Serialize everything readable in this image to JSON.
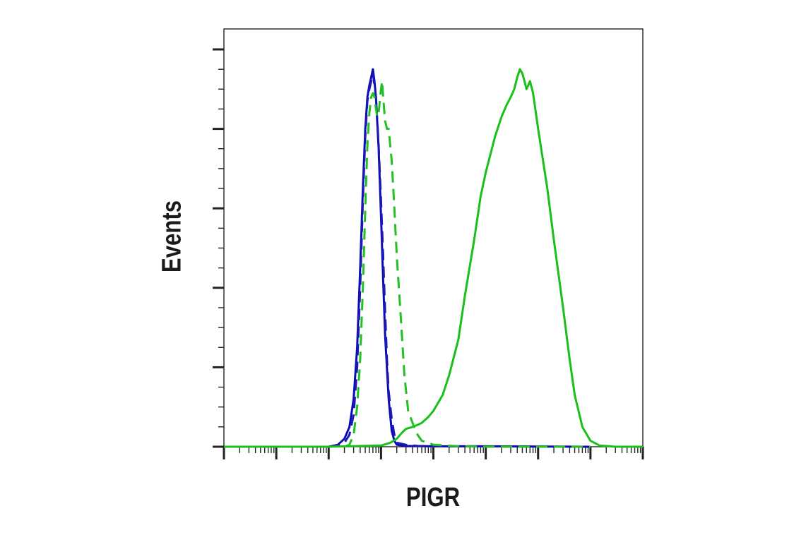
{
  "chart_data": {
    "type": "line",
    "title": "",
    "xlabel": "PIGR",
    "ylabel": "Events",
    "x_scale": "log",
    "xlim": [
      1,
      100000000
    ],
    "ylim": [
      0,
      100
    ],
    "grid": false,
    "legend": "none",
    "y_major_ticks": [
      0,
      20,
      40,
      60,
      80,
      100
    ],
    "series": [
      {
        "color": "#0a0ab8",
        "dash": "solid",
        "points": [
          [
            100,
            0
          ],
          [
            150,
            0.5
          ],
          [
            200,
            2
          ],
          [
            250,
            5
          ],
          [
            300,
            12
          ],
          [
            350,
            25
          ],
          [
            400,
            45
          ],
          [
            450,
            65
          ],
          [
            500,
            80
          ],
          [
            550,
            88
          ],
          [
            600,
            91
          ],
          [
            650,
            93
          ],
          [
            700,
            95
          ],
          [
            750,
            92
          ],
          [
            800,
            88
          ],
          [
            900,
            75
          ],
          [
            1000,
            58
          ],
          [
            1100,
            42
          ],
          [
            1200,
            28
          ],
          [
            1400,
            12
          ],
          [
            1600,
            4
          ],
          [
            1800,
            1.5
          ],
          [
            2000,
            0.5
          ],
          [
            3000,
            0.2
          ],
          [
            10000,
            0.1
          ],
          [
            100000,
            0.1
          ],
          [
            10000000,
            0
          ]
        ]
      },
      {
        "color": "#1a1ab0",
        "dash": "dashed",
        "points": [
          [
            100,
            0
          ],
          [
            150,
            0.3
          ],
          [
            200,
            1
          ],
          [
            250,
            3
          ],
          [
            300,
            8
          ],
          [
            350,
            20
          ],
          [
            400,
            40
          ],
          [
            450,
            62
          ],
          [
            500,
            78
          ],
          [
            550,
            87
          ],
          [
            600,
            90
          ],
          [
            650,
            92
          ],
          [
            700,
            94
          ],
          [
            750,
            91
          ],
          [
            800,
            88
          ],
          [
            850,
            82
          ],
          [
            900,
            76
          ],
          [
            1000,
            62
          ],
          [
            1100,
            48
          ],
          [
            1200,
            34
          ],
          [
            1300,
            22
          ],
          [
            1400,
            14
          ],
          [
            1600,
            7
          ],
          [
            1800,
            3
          ],
          [
            2000,
            1
          ],
          [
            3000,
            0.5
          ],
          [
            5000,
            0.2
          ],
          [
            10000,
            0.1
          ],
          [
            100000,
            0.1
          ],
          [
            10000000,
            0
          ]
        ]
      },
      {
        "color": "#22c022",
        "dash": "dashed",
        "points": [
          [
            200,
            0
          ],
          [
            250,
            0.5
          ],
          [
            300,
            3
          ],
          [
            350,
            10
          ],
          [
            400,
            22
          ],
          [
            450,
            40
          ],
          [
            500,
            60
          ],
          [
            550,
            76
          ],
          [
            600,
            84
          ],
          [
            650,
            88
          ],
          [
            700,
            89
          ],
          [
            750,
            88
          ],
          [
            800,
            85
          ],
          [
            850,
            83
          ],
          [
            900,
            84
          ],
          [
            950,
            87
          ],
          [
            1000,
            90
          ],
          [
            1050,
            92
          ],
          [
            1100,
            88
          ],
          [
            1200,
            82
          ],
          [
            1300,
            80
          ],
          [
            1400,
            80
          ],
          [
            1600,
            72
          ],
          [
            1800,
            60
          ],
          [
            2000,
            48
          ],
          [
            2400,
            32
          ],
          [
            2800,
            18
          ],
          [
            3300,
            9
          ],
          [
            4000,
            6
          ],
          [
            5000,
            3
          ],
          [
            6000,
            1.5
          ],
          [
            8000,
            1
          ],
          [
            10000,
            0.5
          ],
          [
            30000,
            0.1
          ],
          [
            100000,
            0
          ],
          [
            10000000,
            0
          ]
        ]
      },
      {
        "color": "#18c018",
        "dash": "solid",
        "points": [
          [
            1,
            0
          ],
          [
            100,
            0
          ],
          [
            1000,
            0.3
          ],
          [
            1500,
            1
          ],
          [
            2000,
            2
          ],
          [
            2500,
            3.5
          ],
          [
            3000,
            4.5
          ],
          [
            4000,
            5
          ],
          [
            5000,
            5.5
          ],
          [
            6000,
            6
          ],
          [
            8000,
            7.5
          ],
          [
            10000,
            9
          ],
          [
            15000,
            13
          ],
          [
            20000,
            18
          ],
          [
            30000,
            27
          ],
          [
            40000,
            38
          ],
          [
            60000,
            52
          ],
          [
            80000,
            63
          ],
          [
            100000,
            69
          ],
          [
            150000,
            78
          ],
          [
            200000,
            83
          ],
          [
            250000,
            86
          ],
          [
            300000,
            88
          ],
          [
            350000,
            90
          ],
          [
            400000,
            93
          ],
          [
            450000,
            95
          ],
          [
            500000,
            94
          ],
          [
            550000,
            92
          ],
          [
            600000,
            90
          ],
          [
            650000,
            91
          ],
          [
            700000,
            92
          ],
          [
            800000,
            89
          ],
          [
            1000000,
            80
          ],
          [
            1500000,
            65
          ],
          [
            2000000,
            52
          ],
          [
            3000000,
            35
          ],
          [
            4000000,
            22
          ],
          [
            5000000,
            13
          ],
          [
            7000000,
            5
          ],
          [
            10000000,
            1.5
          ],
          [
            15000000,
            0.3
          ],
          [
            30000000,
            0
          ],
          [
            100000000,
            0
          ]
        ]
      }
    ]
  }
}
